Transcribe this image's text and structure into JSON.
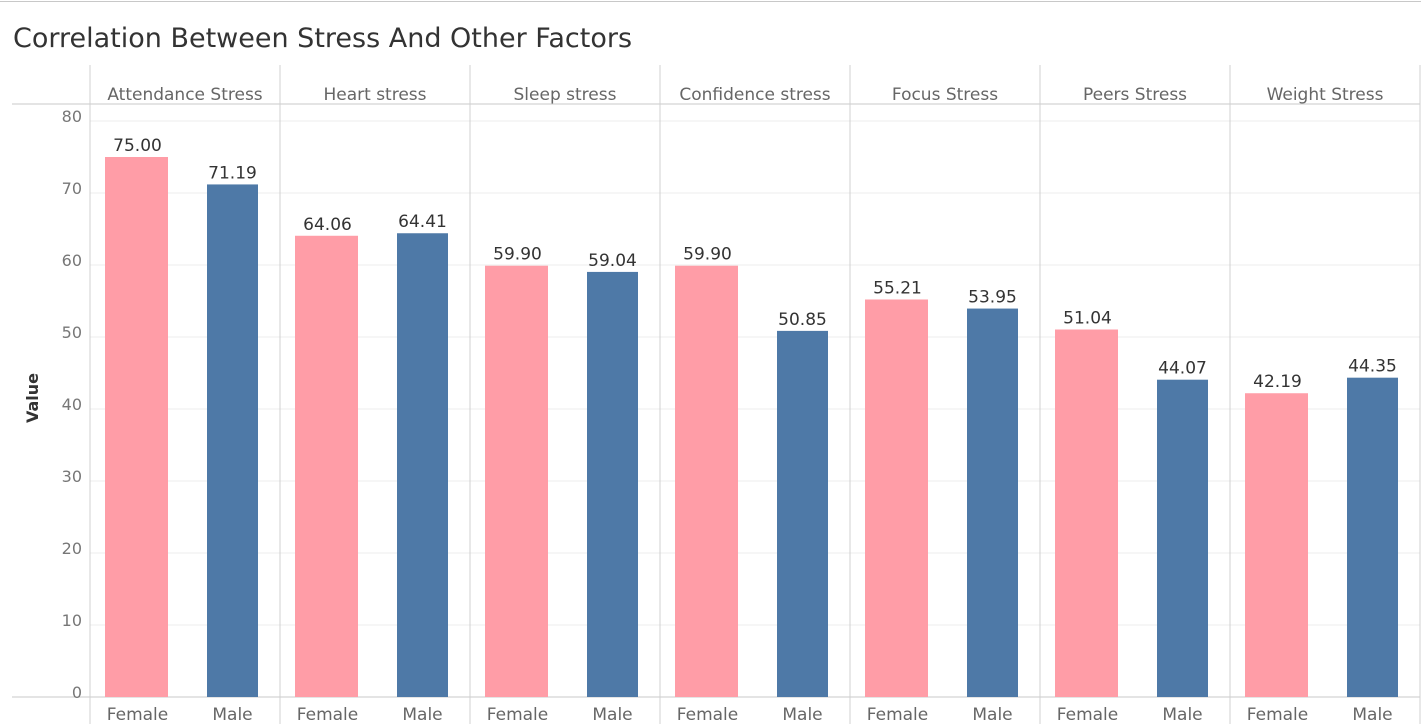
{
  "chart_data": {
    "type": "bar",
    "title": "Correlation Between Stress And Other Factors",
    "ylabel": "Value",
    "ylim": [
      0,
      80
    ],
    "yticks": [
      0,
      10,
      20,
      30,
      40,
      50,
      60,
      70,
      80
    ],
    "grid": true,
    "categories": [
      "Female",
      "Male"
    ],
    "colors": {
      "Female": "#ff9da7",
      "Male": "#4e79a7"
    },
    "panels": [
      {
        "label": "Attendance Stress",
        "values": [
          75.0,
          71.19
        ],
        "value_labels": [
          "75.00",
          "71.19"
        ]
      },
      {
        "label": "Heart stress",
        "values": [
          64.06,
          64.41
        ],
        "value_labels": [
          "64.06",
          "64.41"
        ]
      },
      {
        "label": "Sleep stress",
        "values": [
          59.9,
          59.04
        ],
        "value_labels": [
          "59.90",
          "59.04"
        ]
      },
      {
        "label": "Confidence stress",
        "values": [
          59.9,
          50.85
        ],
        "value_labels": [
          "59.90",
          "50.85"
        ]
      },
      {
        "label": "Focus Stress",
        "values": [
          55.21,
          53.95
        ],
        "value_labels": [
          "55.21",
          "53.95"
        ]
      },
      {
        "label": "Peers Stress",
        "values": [
          51.04,
          44.07
        ],
        "value_labels": [
          "51.04",
          "44.07"
        ]
      },
      {
        "label": "Weight Stress",
        "values": [
          42.19,
          44.35
        ],
        "value_labels": [
          "42.19",
          "44.35"
        ]
      }
    ]
  }
}
